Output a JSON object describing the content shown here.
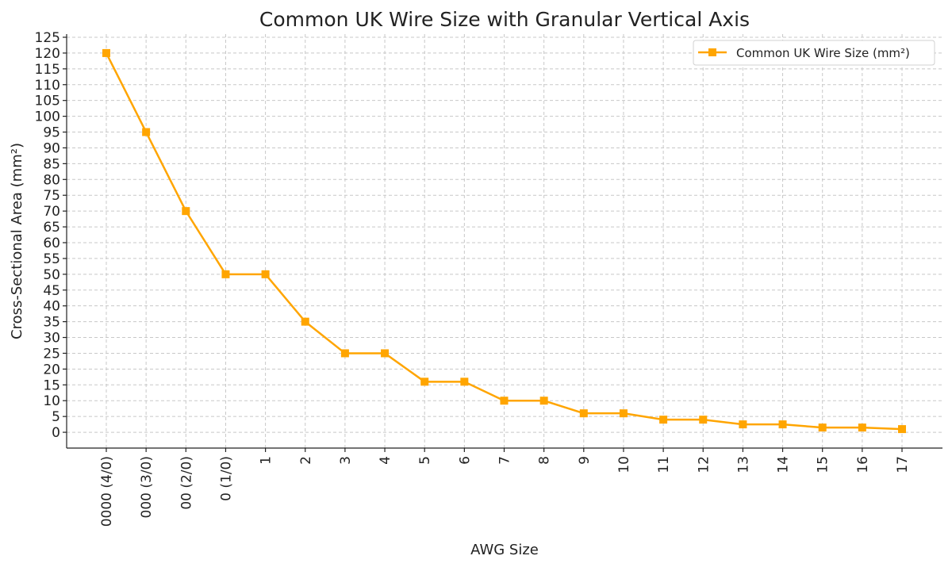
{
  "chart_data": {
    "type": "line",
    "title": "Common UK Wire Size with Granular Vertical Axis",
    "xlabel": "AWG Size",
    "ylabel": "Cross-Sectional Area (mm²)",
    "categories": [
      "0000 (4/0)",
      "000 (3/0)",
      "00 (2/0)",
      "0 (1/0)",
      "1",
      "2",
      "3",
      "4",
      "5",
      "6",
      "7",
      "8",
      "9",
      "10",
      "11",
      "12",
      "13",
      "14",
      "15",
      "16",
      "17"
    ],
    "series": [
      {
        "name": "Common UK Wire Size (mm²)",
        "values": [
          120,
          95,
          70,
          50,
          50,
          35,
          25,
          25,
          16,
          16,
          10,
          10,
          6,
          6,
          4,
          4,
          2.5,
          2.5,
          1.5,
          1.5,
          1
        ],
        "color": "#FFA500",
        "marker": "square"
      }
    ],
    "yticks": [
      0,
      5,
      10,
      15,
      20,
      25,
      30,
      35,
      40,
      45,
      50,
      55,
      60,
      65,
      70,
      75,
      80,
      85,
      90,
      95,
      100,
      105,
      110,
      115,
      120,
      125
    ],
    "ylim": [
      -5,
      126
    ],
    "grid": true,
    "legend": "top-right"
  }
}
